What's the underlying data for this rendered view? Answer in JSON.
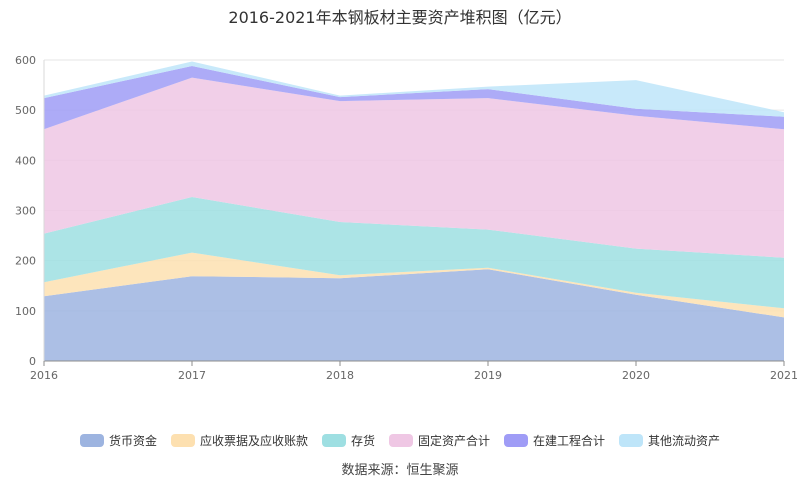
{
  "title": "2016-2021年本钢板材主要资产堆积图（亿元）",
  "source": "数据来源：恒生聚源",
  "chart_data": {
    "type": "area",
    "stacked": true,
    "title": "2016-2021年本钢板材主要资产堆积图（亿元）",
    "x": [
      "2016",
      "2017",
      "2018",
      "2019",
      "2020",
      "2021"
    ],
    "ylim": [
      0,
      600
    ],
    "yticks": [
      0,
      100,
      200,
      300,
      400,
      500,
      600
    ],
    "grid": true,
    "legend_position": "bottom",
    "series": [
      {
        "name": "货币资金",
        "color": "#9db4e0",
        "values": [
          129,
          169,
          165,
          183,
          132,
          87
        ]
      },
      {
        "name": "应收票据及应收账款",
        "color": "#fde0b0",
        "values": [
          28,
          47,
          6,
          3,
          4,
          18
        ]
      },
      {
        "name": "存货",
        "color": "#9edfe2",
        "values": [
          97,
          111,
          106,
          76,
          88,
          101
        ]
      },
      {
        "name": "固定资产合计",
        "color": "#efc7e4",
        "values": [
          208,
          238,
          241,
          262,
          265,
          256
        ]
      },
      {
        "name": "在建工程合计",
        "color": "#9f9cf6",
        "values": [
          62,
          23,
          8,
          18,
          14,
          25
        ]
      },
      {
        "name": "其他流动资产",
        "color": "#bee5f9",
        "values": [
          5,
          9,
          3,
          5,
          57,
          9
        ]
      }
    ]
  }
}
